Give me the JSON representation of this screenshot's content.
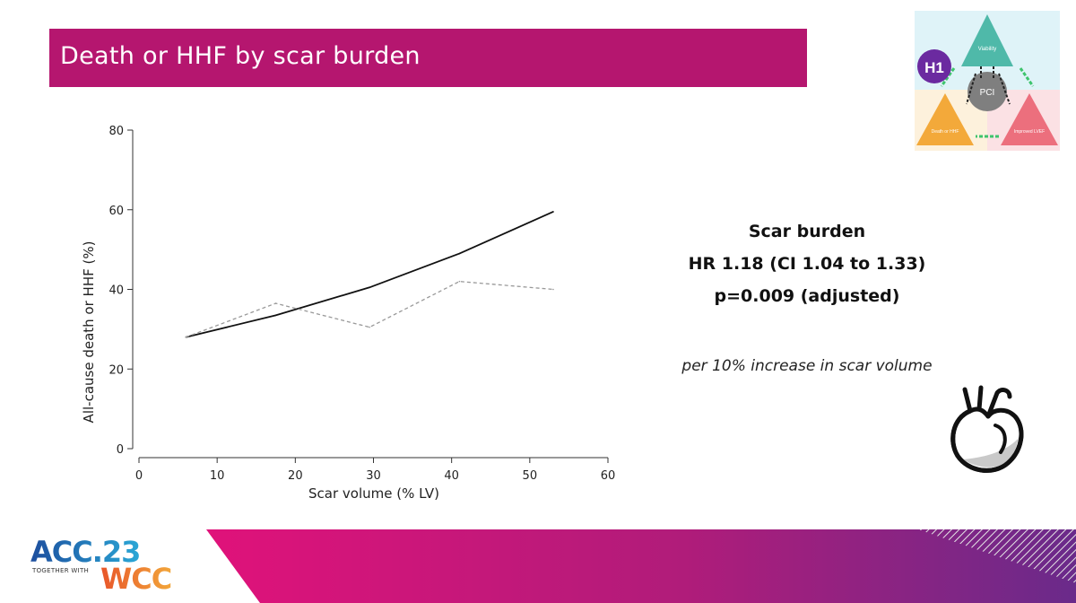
{
  "slide": {
    "title": "Death or HHF by scar burden"
  },
  "logo": {
    "badge": "H1",
    "top_label": "Viability",
    "center_label": "PCI",
    "left_label": "Death or HHF",
    "right_label": "Improved LVEF",
    "colors": {
      "teal": "#4fb9a9",
      "orange": "#f3a93a",
      "pink": "#ec6f7d",
      "purple": "#6b2aa0",
      "green": "#3ec46d"
    }
  },
  "stats": {
    "line1": "Scar burden",
    "line2": "HR 1.18 (CI 1.04 to 1.33)",
    "line3": "p=0.009 (adjusted)",
    "note": "per 10% increase in scar volume"
  },
  "brand": {
    "acc": "ACC.23",
    "together": "TOGETHER WITH",
    "wcc": "WCC"
  },
  "chart_data": {
    "type": "line",
    "xlabel": "Scar volume (% LV)",
    "ylabel": "All-cause death or HHF (%)",
    "xlim": [
      0,
      60
    ],
    "ylim": [
      0,
      80
    ],
    "xticks": [
      0,
      10,
      20,
      30,
      40,
      50,
      60
    ],
    "yticks": [
      0,
      20,
      40,
      60,
      80
    ],
    "grid": false,
    "series": [
      {
        "style": "solid",
        "color": "#111111",
        "x": [
          6,
          17.5,
          29.5,
          41,
          53
        ],
        "y": [
          28,
          33.5,
          40.5,
          49,
          59.5
        ]
      },
      {
        "style": "dashed",
        "color": "#999999",
        "x": [
          6,
          17.5,
          29.5,
          41,
          53
        ],
        "y": [
          28,
          36.5,
          30.5,
          42,
          40
        ]
      }
    ]
  },
  "icons": {
    "heart": "heart-icon"
  }
}
